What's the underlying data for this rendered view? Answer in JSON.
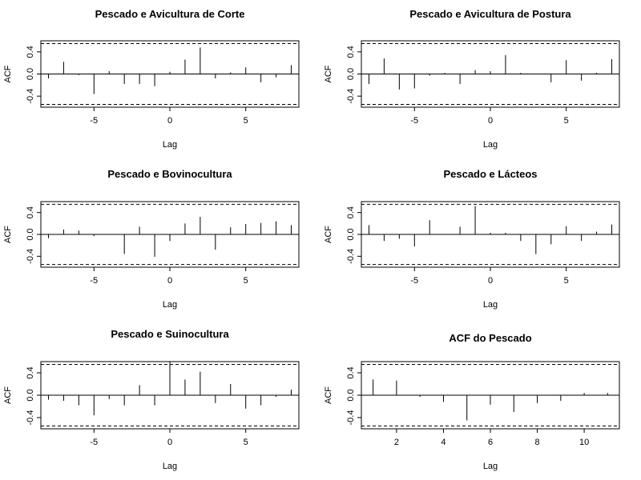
{
  "chart_data": [
    {
      "type": "bar",
      "title": "Pescado e Avicultura de Corte",
      "xlabel": "Lag",
      "ylabel": "ACF",
      "xlim": [
        -8.5,
        8.5
      ],
      "ylim": [
        -0.6,
        0.6
      ],
      "xticks": [
        -5,
        0,
        5
      ],
      "yticks": [
        -0.4,
        0.0,
        0.4
      ],
      "ytick_labels": [
        "-0.4",
        "0.0",
        "0.4"
      ],
      "ci": 0.55,
      "x": [
        -8,
        -7,
        -6,
        -5,
        -4,
        -3,
        -2,
        -1,
        0,
        1,
        2,
        3,
        4,
        5,
        6,
        7,
        8
      ],
      "values": [
        -0.08,
        0.22,
        -0.02,
        -0.36,
        0.05,
        -0.18,
        -0.18,
        -0.22,
        0.04,
        0.26,
        0.48,
        -0.08,
        0.03,
        0.12,
        -0.15,
        -0.06,
        0.16
      ]
    },
    {
      "type": "bar",
      "title": "Pescado e Avicultura de Postura",
      "xlabel": "Lag",
      "ylabel": "ACF",
      "xlim": [
        -8.5,
        8.5
      ],
      "ylim": [
        -0.6,
        0.6
      ],
      "xticks": [
        -5,
        0,
        5
      ],
      "yticks": [
        -0.4,
        0.0,
        0.4
      ],
      "ytick_labels": [
        "-0.4",
        "0.0",
        "0.4"
      ],
      "ci": 0.55,
      "x": [
        -8,
        -7,
        -6,
        -5,
        -4,
        -3,
        -2,
        -1,
        0,
        1,
        2,
        3,
        4,
        5,
        6,
        7,
        8
      ],
      "values": [
        -0.18,
        0.28,
        -0.28,
        -0.26,
        -0.03,
        0.02,
        -0.18,
        0.07,
        0.05,
        0.34,
        0.02,
        0.0,
        -0.15,
        0.25,
        -0.12,
        0.02,
        0.27
      ]
    },
    {
      "type": "bar",
      "title": "Pescado e Bovinocultura",
      "xlabel": "Lag",
      "ylabel": "ACF",
      "xlim": [
        -8.5,
        8.5
      ],
      "ylim": [
        -0.6,
        0.6
      ],
      "xticks": [
        -5,
        0,
        5
      ],
      "yticks": [
        -0.4,
        0.0,
        0.4
      ],
      "ytick_labels": [
        "-0.4",
        "0.0",
        "0.4"
      ],
      "ci": 0.55,
      "x": [
        -8,
        -7,
        -6,
        -5,
        -4,
        -3,
        -2,
        -1,
        0,
        1,
        2,
        3,
        4,
        5,
        6,
        7,
        8
      ],
      "values": [
        -0.07,
        0.09,
        0.07,
        -0.03,
        0.0,
        -0.36,
        0.14,
        -0.41,
        -0.12,
        0.2,
        0.32,
        -0.28,
        0.13,
        0.19,
        0.21,
        0.24,
        0.17
      ]
    },
    {
      "type": "bar",
      "title": "Pescado e Lácteos",
      "xlabel": "Lag",
      "ylabel": "ACF",
      "xlim": [
        -8.5,
        8.5
      ],
      "ylim": [
        -0.6,
        0.6
      ],
      "xticks": [
        -5,
        0,
        5
      ],
      "yticks": [
        -0.4,
        0.0,
        0.4
      ],
      "ytick_labels": [
        "-0.4",
        "0.0",
        "0.4"
      ],
      "ci": 0.55,
      "x": [
        -8,
        -7,
        -6,
        -5,
        -4,
        -3,
        -2,
        -1,
        0,
        1,
        2,
        3,
        4,
        5,
        6,
        7,
        8
      ],
      "values": [
        0.17,
        -0.12,
        -0.08,
        -0.22,
        0.26,
        0.0,
        0.14,
        0.52,
        0.03,
        0.03,
        -0.12,
        -0.36,
        -0.18,
        0.15,
        -0.12,
        0.05,
        0.18
      ]
    },
    {
      "type": "bar",
      "title": "Pescado e Suinocultura",
      "xlabel": "Lag",
      "ylabel": "ACF",
      "xlim": [
        -8.5,
        8.5
      ],
      "ylim": [
        -0.6,
        0.6
      ],
      "xticks": [
        -5,
        0,
        5
      ],
      "yticks": [
        -0.4,
        0.0,
        0.4
      ],
      "ytick_labels": [
        "-0.4",
        "0.0",
        "0.4"
      ],
      "ci": 0.55,
      "x": [
        -8,
        -7,
        -6,
        -5,
        -4,
        -3,
        -2,
        -1,
        0,
        1,
        2,
        3,
        4,
        5,
        6,
        7,
        8
      ],
      "values": [
        -0.08,
        -0.1,
        -0.18,
        -0.36,
        -0.07,
        -0.18,
        0.18,
        -0.18,
        0.6,
        0.28,
        0.42,
        -0.14,
        0.2,
        -0.24,
        -0.18,
        -0.03,
        0.1
      ]
    },
    {
      "type": "bar",
      "title": "ACF do Pescado",
      "xlabel": "Lag",
      "ylabel": "ACF",
      "xlim": [
        0.5,
        11.5
      ],
      "ylim": [
        -0.6,
        0.6
      ],
      "xticks": [
        2,
        4,
        6,
        8,
        10
      ],
      "yticks": [
        -0.4,
        0.0,
        0.4
      ],
      "ytick_labels": [
        "-0.4",
        "0.0",
        "0.4"
      ],
      "ci": 0.55,
      "x": [
        1,
        2,
        3,
        4,
        5,
        6,
        7,
        8,
        9,
        10,
        11
      ],
      "values": [
        0.28,
        0.26,
        -0.03,
        -0.12,
        -0.45,
        -0.17,
        -0.3,
        -0.14,
        -0.1,
        0.04,
        0.04
      ]
    }
  ]
}
